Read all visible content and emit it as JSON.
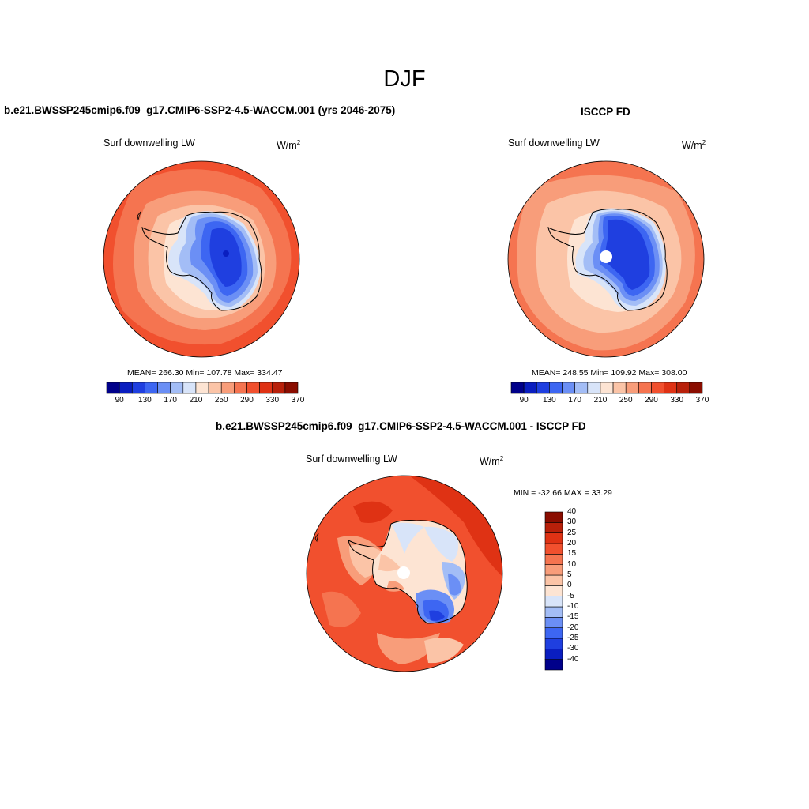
{
  "page": {
    "title": "DJF"
  },
  "panels": [
    {
      "title": "b.e21.BWSSP245cmip6.f09_g17.CMIP6-SSP2-4.5-WACCM.001 (yrs 2046-2075)",
      "variable": "Surf downwelling LW",
      "units_base": "W/m",
      "units_exp": "2",
      "stats": "MEAN= 266.30  Min= 107.78  Max= 334.47"
    },
    {
      "title": "ISCCP FD",
      "variable": "Surf downwelling LW",
      "units_base": "W/m",
      "units_exp": "2",
      "stats": "MEAN= 248.55  Min= 109.92  Max= 308.00"
    },
    {
      "title": "b.e21.BWSSP245cmip6.f09_g17.CMIP6-SSP2-4.5-WACCM.001 - ISCCP FD",
      "variable": "Surf downwelling LW",
      "units_base": "W/m",
      "units_exp": "2",
      "stats": "MIN = -32.66 MAX =  33.29"
    }
  ],
  "colorbar_abs": {
    "colors": [
      "#00008a",
      "#0a1ec0",
      "#1f3fe0",
      "#3d66f2",
      "#6b8ff5",
      "#a3bdf6",
      "#d8e4f9",
      "#fde4d3",
      "#fbc4a7",
      "#f89d7a",
      "#f57450",
      "#f1502e",
      "#df3214",
      "#b8200a",
      "#8a0d00"
    ],
    "tick_labels": [
      "90",
      "130",
      "170",
      "210",
      "250",
      "290",
      "330",
      "370"
    ]
  },
  "colorbar_diff": {
    "colors": [
      "#00008a",
      "#0a1ec0",
      "#1f3fe0",
      "#3d66f2",
      "#6b8ff5",
      "#a3bdf6",
      "#d8e4f9",
      "#fde4d3",
      "#fbc4a7",
      "#f89d7a",
      "#f57450",
      "#f1502e",
      "#df3214",
      "#b8200a",
      "#8a0d00"
    ],
    "tick_labels": [
      "-40",
      "-30",
      "-25",
      "-20",
      "-15",
      "-10",
      "-5",
      "0",
      "5",
      "10",
      "15",
      "20",
      "25",
      "30",
      "40"
    ]
  }
}
